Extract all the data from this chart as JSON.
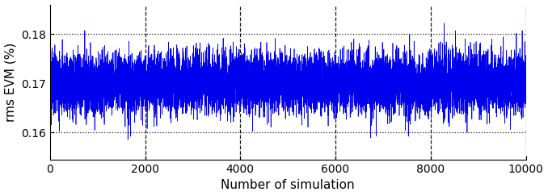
{
  "n_points": 10000,
  "mean": 0.17,
  "std": 0.003,
  "seed": 123,
  "line_color": "#0000EE",
  "line_width": 0.5,
  "xlabel": "Number of simulation",
  "ylabel": "rms EVM (%)",
  "xlim": [
    0,
    10000
  ],
  "ylim": [
    0.1545,
    0.186
  ],
  "yticks": [
    0.16,
    0.17,
    0.18
  ],
  "xticks": [
    0,
    2000,
    4000,
    6000,
    8000,
    10000
  ],
  "hgrid_color": "#000000",
  "hgrid_linestyle": ":",
  "hgrid_alpha": 0.9,
  "hgrid_linewidth": 0.9,
  "vgrid_color": "#000000",
  "vgrid_linestyle": "--",
  "vgrid_alpha": 0.9,
  "vgrid_linewidth": 0.9,
  "xlabel_fontsize": 11,
  "ylabel_fontsize": 11,
  "tick_fontsize": 10,
  "background_color": "#ffffff",
  "figsize": [
    6.78,
    2.43
  ],
  "dpi": 100
}
